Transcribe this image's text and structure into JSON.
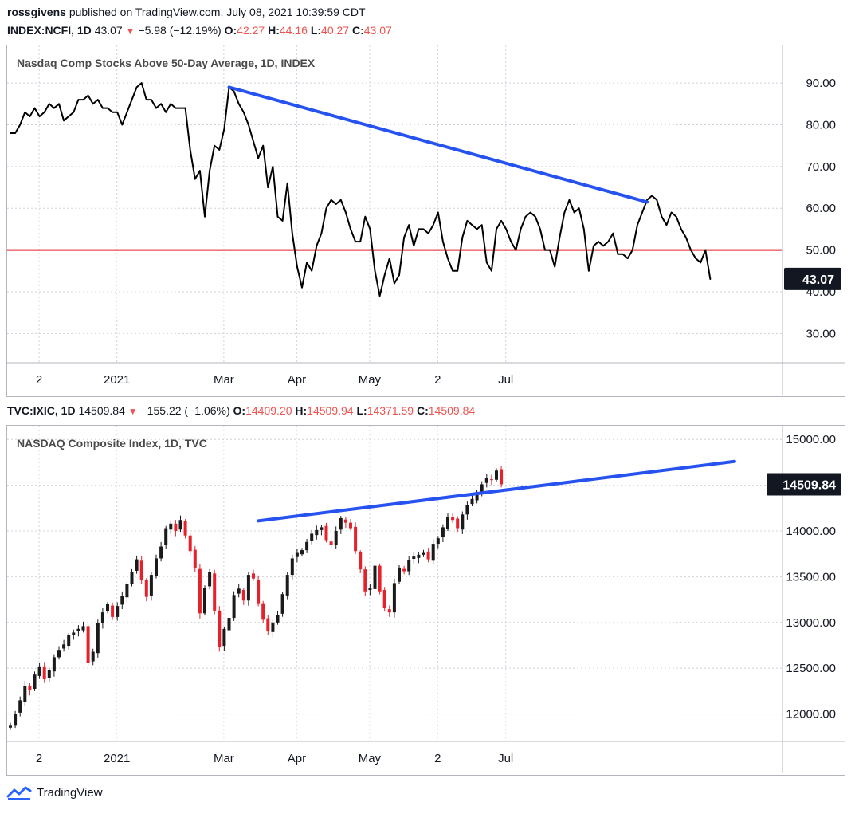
{
  "header": {
    "publisher": "rossgivens",
    "published_text": "published on TradingView.com, July 08, 2021 10:39:59 CDT"
  },
  "top_legend": {
    "symbol": "INDEX:NCFI, 1D",
    "last": "43.07",
    "change": "−5.98 (−12.19%)",
    "o_label": "O:",
    "o": "42.27",
    "h_label": "H:",
    "h": "44.16",
    "l_label": "L:",
    "l": "40.27",
    "c_label": "C:",
    "c": "43.07",
    "arrow": "▼"
  },
  "bottom_legend": {
    "symbol": "TVC:IXIC, 1D",
    "last": "14509.84",
    "change": "−155.22 (−1.06%)",
    "o_label": "O:",
    "o": "14409.20",
    "h_label": "H:",
    "h": "14509.94",
    "l_label": "L:",
    "l": "14371.59",
    "c_label": "C:",
    "c": "14509.84",
    "arrow": "▼"
  },
  "footer": {
    "brand": "TradingView"
  },
  "colors": {
    "line": "#000000",
    "trend": "#2652f0",
    "hline": "#e5222b",
    "up": "#1a1a1a",
    "down": "#e5222b",
    "grid": "#d1d4dc"
  },
  "chart_data": [
    {
      "type": "line",
      "title": "Nasdaq Comp Stocks Above 50-Day Average, 1D, INDEX",
      "ylim": [
        23,
        99
      ],
      "y_ticks": [
        "90.00",
        "80.00",
        "70.00",
        "60.00",
        "50.00",
        "40.00",
        "30.00"
      ],
      "y_tick_values": [
        90,
        80,
        70,
        60,
        50,
        40,
        30
      ],
      "x_ticks": [
        "2",
        "2021",
        "Mar",
        "Apr",
        "May",
        "2",
        "Jul"
      ],
      "x_tick_index": [
        1,
        17,
        39,
        54,
        69,
        83,
        97
      ],
      "last_label": "43.07",
      "last_value": 43.07,
      "values": [
        78,
        78,
        80,
        83,
        82,
        84,
        82,
        83,
        85,
        84,
        85,
        81,
        82,
        83,
        86,
        86,
        87,
        85,
        86,
        84,
        84,
        83,
        83,
        80,
        83,
        86,
        89,
        90,
        86,
        86,
        84,
        85,
        83,
        85,
        84,
        84,
        84,
        74,
        67,
        69,
        58,
        69,
        75,
        74,
        79,
        89,
        88,
        85,
        83,
        80,
        76,
        72,
        75,
        65,
        70,
        58,
        57,
        66,
        54,
        46,
        41,
        47,
        45,
        51,
        54,
        60,
        62,
        61,
        62,
        59,
        55,
        52,
        52,
        58,
        55,
        45,
        39,
        44,
        48,
        42,
        44,
        53,
        56,
        51,
        55,
        55,
        54,
        56,
        59,
        52,
        48,
        45,
        45,
        53,
        57,
        56,
        55,
        56,
        47,
        45,
        55,
        57,
        55,
        52,
        50,
        55,
        58,
        59,
        58,
        55,
        50,
        50,
        46,
        53,
        59,
        62,
        59,
        60,
        55,
        45,
        51,
        52,
        51,
        52,
        54,
        49,
        49,
        48,
        50,
        56,
        59,
        62,
        63,
        62,
        58,
        56,
        59,
        58,
        55,
        53,
        50,
        48,
        47,
        50,
        43
      ]
    },
    {
      "type": "candlestick",
      "title": "NASDAQ Composite Index, 1D, TVC",
      "ylim": [
        11700,
        15150
      ],
      "y_ticks": [
        "15000.00",
        "14500.00",
        "14000.00",
        "13500.00",
        "13000.00",
        "12500.00",
        "12000.00"
      ],
      "y_tick_values": [
        15000,
        14500,
        14000,
        13500,
        13000,
        12500,
        12000
      ],
      "x_ticks": [
        "2",
        "2021",
        "Mar",
        "Apr",
        "May",
        "2",
        "Jul"
      ],
      "x_tick_index": [
        1,
        17,
        39,
        54,
        69,
        83,
        97
      ],
      "last_label": "14509.84",
      "last_value": 14509.84,
      "closes": [
        11880,
        12000,
        12150,
        12310,
        12260,
        12430,
        12520,
        12380,
        12480,
        12620,
        12700,
        12760,
        12860,
        12890,
        12930,
        12960,
        12560,
        12680,
        12990,
        13110,
        13200,
        13060,
        13180,
        13290,
        13420,
        13550,
        13690,
        13460,
        13280,
        13520,
        13700,
        13830,
        14030,
        14080,
        14000,
        14120,
        13950,
        13780,
        13600,
        13100,
        13380,
        13550,
        13130,
        12730,
        12930,
        13050,
        13300,
        13370,
        13240,
        13520,
        13480,
        13210,
        13030,
        12910,
        13000,
        13080,
        13310,
        13520,
        13700,
        13760,
        13790,
        13880,
        13970,
        14010,
        14040,
        13900,
        13850,
        14000,
        14140,
        14090,
        14030,
        13780,
        13580,
        13340,
        13380,
        13620,
        13340,
        13160,
        13110,
        13430,
        13600,
        13560,
        13680,
        13720,
        13740,
        13760,
        13690,
        13860,
        13920,
        14040,
        14150,
        14120,
        14030,
        14180,
        14280,
        14350,
        14420,
        14510,
        14580,
        14560,
        14660,
        14510
      ],
      "trendline_values": [
        14110,
        14760
      ]
    }
  ]
}
